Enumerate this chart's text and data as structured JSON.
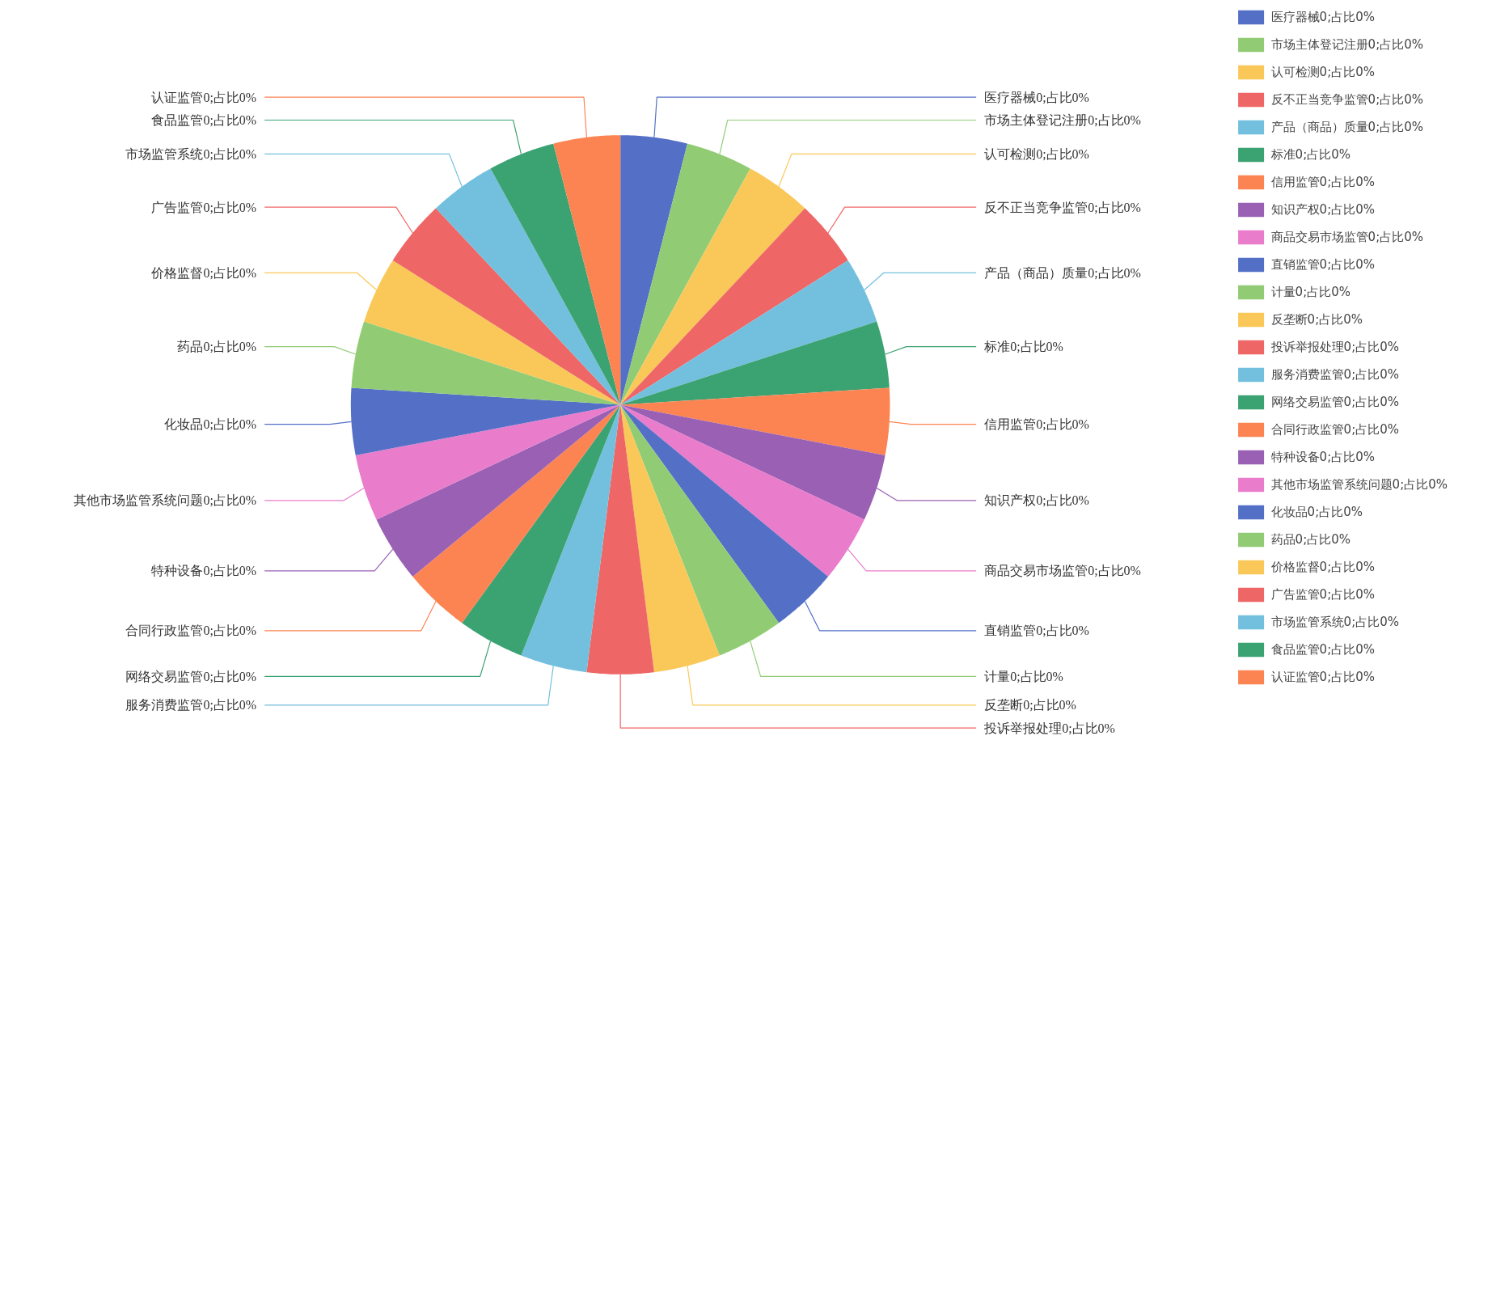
{
  "chart_data": {
    "type": "pie",
    "categories": [
      "医疗器械0;占比0%",
      "市场主体登记注册0;占比0%",
      "认可检测0;占比0%",
      "反不正当竞争监管0;占比0%",
      "产品（商品）质量0;占比0%",
      "标准0;占比0%",
      "信用监管0;占比0%",
      "知识产权0;占比0%",
      "商品交易市场监管0;占比0%",
      "直销监管0;占比0%",
      "计量0;占比0%",
      "反垄断0;占比0%",
      "投诉举报处理0;占比0%",
      "服务消费监管0;占比0%",
      "网络交易监管0;占比0%",
      "合同行政监管0;占比0%",
      "特种设备0;占比0%",
      "其他市场监管系统问题0;占比0%",
      "化妆品0;占比0%",
      "药品0;占比0%",
      "价格监督0;占比0%",
      "广告监管0;占比0%",
      "市场监管系统0;占比0%",
      "食品监管0;占比0%",
      "认证监管0;占比0%"
    ],
    "values": [
      4,
      4,
      4,
      4,
      4,
      4,
      4,
      4,
      4,
      4,
      4,
      4,
      4,
      4,
      4,
      4,
      4,
      4,
      4,
      4,
      4,
      4,
      4,
      4,
      4
    ],
    "colors": [
      "#5470c6",
      "#91cc75",
      "#fac858",
      "#ee6666",
      "#73c0de",
      "#3ba272",
      "#fc8452",
      "#9a60b4",
      "#ea7ccc",
      "#5470c6",
      "#91cc75",
      "#fac858",
      "#ee6666",
      "#73c0de",
      "#3ba272",
      "#fc8452",
      "#9a60b4",
      "#ea7ccc",
      "#5470c6",
      "#91cc75",
      "#fac858",
      "#ee6666",
      "#73c0de",
      "#3ba272",
      "#fc8452"
    ],
    "legend": "right"
  }
}
